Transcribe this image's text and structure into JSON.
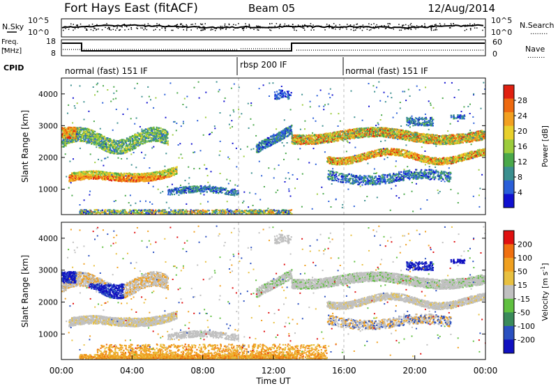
{
  "header": {
    "station": "Fort Hays East (fitACF)",
    "beam": "Beam 05",
    "date": "12/Aug/2014"
  },
  "left_labels": {
    "nsky": "N.Sky",
    "freq": "Freq.",
    "mhz": "[MHz]",
    "cpid": "CPID"
  },
  "right_labels": {
    "nsearch": "N.Search",
    "nave": "Nave",
    "dots": "........"
  },
  "noise_panel": {
    "y_top_label": "10^5",
    "y_bottom_label": "10^0",
    "right_top_label": "10^5",
    "right_bottom_label": "10^0"
  },
  "freq_panel": {
    "left_ticks": [
      "18",
      "8"
    ],
    "right_ticks": [
      "60",
      "0"
    ]
  },
  "cpid_segments": [
    {
      "label": "normal (fast) 151 IF",
      "start_hour": 0,
      "end_hour": 10
    },
    {
      "label": "rbsp 200 IF",
      "start_hour": 10,
      "end_hour": 16
    },
    {
      "label": "normal (fast) 151 IF",
      "start_hour": 16,
      "end_hour": 24
    }
  ],
  "chart_data": [
    {
      "type": "heatmap",
      "quantity": "power",
      "ylabel": "Slant Range [km]",
      "ylim": [
        200,
        4500
      ],
      "yticks": [
        1000,
        2000,
        3000,
        4000
      ],
      "xlim": [
        0,
        24
      ],
      "colorbar": {
        "label": "Power [dB]",
        "range": [
          0,
          32
        ],
        "ticks": [
          "4",
          "8",
          "12",
          "16",
          "20",
          "24",
          "28"
        ],
        "colors": [
          "#1010d0",
          "#2a5fd8",
          "#3b8f8f",
          "#4aa84a",
          "#9ccc3c",
          "#e8d02c",
          "#f2a020",
          "#ee6a10",
          "#e02010"
        ]
      },
      "features": [
        {
          "name": "main band",
          "hours": [
            0.5,
            6.5
          ],
          "range_km": [
            1200,
            1900
          ],
          "power_db": 20
        },
        {
          "name": "upper band",
          "hours": [
            0,
            6
          ],
          "range_km": [
            2300,
            2900
          ],
          "power_db": 12
        },
        {
          "name": "evening band",
          "hours": [
            13,
            24
          ],
          "range_km": [
            1700,
            2900
          ],
          "power_db": 16
        }
      ]
    },
    {
      "type": "heatmap",
      "quantity": "velocity",
      "ylabel": "Slant Range [km]",
      "xlabel": "Time UT",
      "ylim": [
        200,
        4500
      ],
      "yticks": [
        1000,
        2000,
        3000,
        4000
      ],
      "xlim": [
        0,
        24
      ],
      "xtick_labels": [
        "00:00",
        "04:00",
        "08:00",
        "12:00",
        "16:00",
        "20:00",
        "00:00"
      ],
      "colorbar": {
        "label_main": "Velocity [m s",
        "label_sup": "-1",
        "label_end": "]",
        "range": [
          -250,
          250
        ],
        "ticks": [
          "200",
          "100",
          "50",
          "15",
          "-15",
          "-50",
          "-100",
          "-200"
        ],
        "colors": [
          "#e01010",
          "#f07010",
          "#f0a020",
          "#e8c040",
          "#c0c0c0",
          "#60c040",
          "#3a8a5a",
          "#2a50c0",
          "#1010c0"
        ]
      }
    }
  ]
}
